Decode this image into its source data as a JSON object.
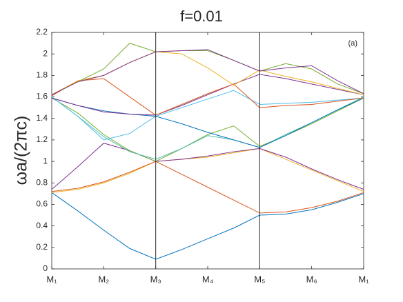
{
  "chart_data": {
    "type": "line",
    "title": "f=0.01",
    "y_label": "ωa/(2πc)",
    "annotation": "(a)",
    "x": [
      0,
      0.5,
      1,
      1.5,
      2,
      2.5,
      3,
      3.5,
      4,
      4.5,
      5,
      5.5,
      6
    ],
    "xlim": [
      0,
      6
    ],
    "xticks": [
      {
        "value": 0,
        "label": "M₁"
      },
      {
        "value": 1,
        "label": "M₂"
      },
      {
        "value": 2,
        "label": "M₃"
      },
      {
        "value": 3,
        "label": "M₄"
      },
      {
        "value": 4,
        "label": "M₅"
      },
      {
        "value": 5,
        "label": "M₆"
      },
      {
        "value": 6,
        "label": "M₁"
      }
    ],
    "xlines": [
      2,
      4
    ],
    "ylim": [
      0,
      2.2
    ],
    "yticks": [
      0,
      0.2,
      0.4,
      0.6,
      0.8,
      1,
      1.2,
      1.4,
      1.6,
      1.8,
      2,
      2.2
    ],
    "series": [
      {
        "color": "#0072bd",
        "values": [
          0.71,
          0.54,
          0.36,
          0.19,
          0.09,
          0.18,
          0.28,
          0.38,
          0.5,
          0.51,
          0.55,
          0.62,
          0.7
        ]
      },
      {
        "color": "#edb120",
        "values": [
          0.71,
          0.74,
          0.8,
          0.89,
          1.0,
          1.02,
          1.04,
          1.08,
          1.12,
          1.02,
          0.92,
          0.82,
          0.72
        ]
      },
      {
        "color": "#d95319",
        "values": [
          0.72,
          0.75,
          0.81,
          0.9,
          1.0,
          0.88,
          0.76,
          0.64,
          0.52,
          0.53,
          0.57,
          0.63,
          0.71
        ]
      },
      {
        "color": "#7e2f8e",
        "values": [
          0.74,
          0.95,
          1.17,
          1.1,
          1.0,
          1.02,
          1.05,
          1.09,
          1.12,
          1.04,
          0.93,
          0.83,
          0.74
        ]
      },
      {
        "color": "#77ac30",
        "values": [
          1.59,
          1.45,
          1.25,
          1.1,
          1.0,
          1.12,
          1.25,
          1.33,
          1.14,
          1.24,
          1.35,
          1.47,
          1.59
        ]
      },
      {
        "color": "#4dbeaa",
        "values": [
          1.6,
          1.42,
          1.23,
          1.09,
          1.02,
          1.12,
          1.24,
          1.2,
          1.13,
          1.25,
          1.36,
          1.48,
          1.6
        ]
      },
      {
        "color": "#4dbeee",
        "values": [
          1.6,
          1.42,
          1.2,
          1.26,
          1.42,
          1.5,
          1.58,
          1.66,
          1.53,
          1.54,
          1.55,
          1.57,
          1.59
        ]
      },
      {
        "color": "#0072bd",
        "values": [
          1.59,
          1.52,
          1.47,
          1.44,
          1.42,
          1.35,
          1.27,
          1.2,
          1.13,
          1.24,
          1.36,
          1.48,
          1.59
        ]
      },
      {
        "color": "#7e2f8e",
        "values": [
          1.59,
          1.52,
          1.46,
          1.44,
          1.43,
          1.52,
          1.62,
          1.72,
          1.81,
          1.77,
          1.72,
          1.67,
          1.62
        ]
      },
      {
        "color": "#d95319",
        "values": [
          1.61,
          1.75,
          1.77,
          1.6,
          1.43,
          1.53,
          1.63,
          1.72,
          1.5,
          1.52,
          1.53,
          1.56,
          1.59
        ]
      },
      {
        "color": "#edb120",
        "values": [
          1.62,
          1.75,
          1.8,
          1.92,
          2.02,
          2.0,
          1.87,
          1.71,
          1.85,
          1.79,
          1.74,
          1.68,
          1.62
        ]
      },
      {
        "color": "#77ac30",
        "values": [
          1.62,
          1.74,
          1.86,
          2.1,
          2.02,
          2.03,
          2.03,
          1.94,
          1.84,
          1.91,
          1.86,
          1.72,
          1.63
        ]
      },
      {
        "color": "#7e2f8e",
        "values": [
          1.62,
          1.74,
          1.8,
          1.92,
          2.02,
          2.03,
          2.04,
          1.94,
          1.84,
          1.87,
          1.89,
          1.75,
          1.63
        ]
      }
    ]
  }
}
